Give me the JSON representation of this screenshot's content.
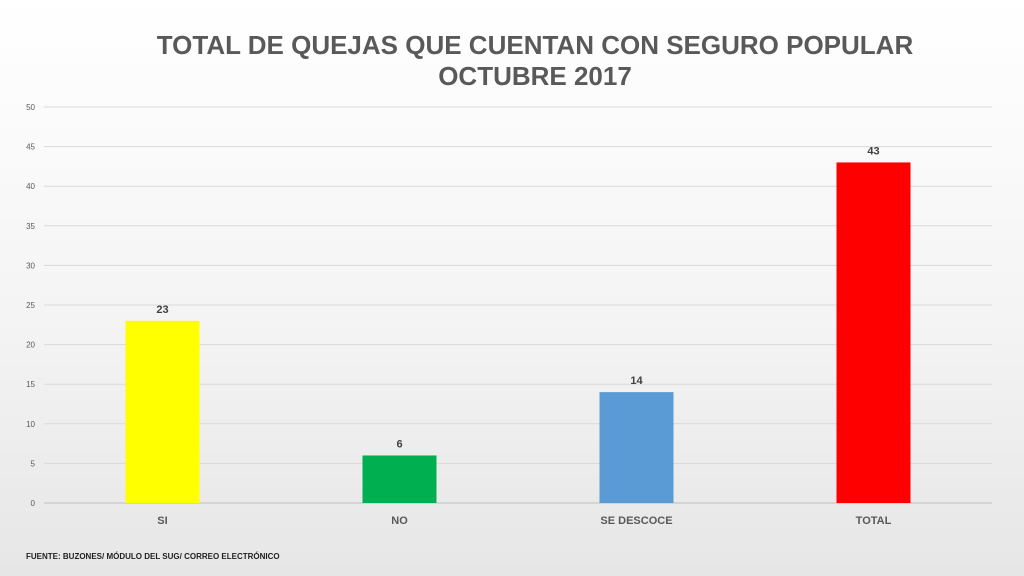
{
  "chart_data": {
    "type": "bar",
    "title": [
      "TOTAL DE QUEJAS QUE CUENTAN CON SEGURO POPULAR",
      "OCTUBRE 2017"
    ],
    "categories": [
      "SI",
      "NO",
      "SE DESCOCE",
      "TOTAL"
    ],
    "values": [
      23,
      6,
      14,
      43
    ],
    "bar_colors": [
      "#ffff00",
      "#00b050",
      "#5b9bd5",
      "#ff0000"
    ],
    "ylim": [
      0,
      50
    ],
    "yticks": [
      0,
      5,
      10,
      15,
      20,
      25,
      30,
      35,
      40,
      45,
      50
    ],
    "grid": true,
    "show_data_labels": true
  },
  "footer": "FUENTE: BUZONES/ MÓDULO DEL SUG/ CORREO ELECTRÓNICO"
}
